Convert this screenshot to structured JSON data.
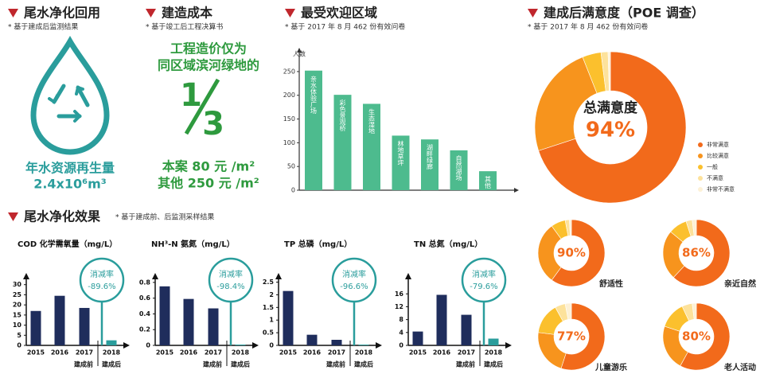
{
  "sections": [
    {
      "title": "尾水净化回用",
      "note": "* 基于建成后监测结果"
    },
    {
      "title": "建造成本",
      "note": "* 基于竣工后工程决算书"
    },
    {
      "title": "最受欢迎区域",
      "note": "* 基于 2017 年 8 月 462 份有效问卷"
    },
    {
      "title": "建成后满意度（POE 调查）",
      "note": "* 基于 2017 年 8 月 462 份有效问卷"
    },
    {
      "title": "尾水净化效果",
      "note": "* 基于建成前、后监测采样结果"
    }
  ],
  "water": {
    "label": "年水资源再生量",
    "amount": "2.4x10⁶m³"
  },
  "cost": {
    "lines": [
      "工程造价仅为",
      "同区域滨河绿地的"
    ],
    "numerator": "1",
    "denominator": "3",
    "rows": [
      "本案 80 元 /m²",
      "其他 250 元 /m²"
    ]
  },
  "chart_data": [
    {
      "type": "bar",
      "y_label": "人数",
      "categories": [
        "亲水体验广场",
        "彩色景观桥",
        "生态湿地",
        "林地草坪",
        "湖畔绿廊",
        "自然湖场",
        "其他"
      ],
      "values": [
        252,
        201,
        182,
        115,
        107,
        84,
        40
      ],
      "color": "#4dbb8e",
      "ylim": [
        0,
        270
      ],
      "yticks": [
        0,
        50,
        100,
        150,
        200,
        250
      ]
    },
    {
      "type": "pie",
      "center_title": "总满意度",
      "center_label": "94%",
      "legend": "right",
      "categories": [
        "非常满意",
        "比较满意",
        "一般",
        "不满意",
        "非常不满意"
      ],
      "values": [
        70,
        24,
        4,
        1.5,
        0.5
      ],
      "colors": [
        "#f26a1b",
        "#f7941d",
        "#fbc02d",
        "#fde29b",
        "#fdf1d6"
      ]
    },
    {
      "type": "pie",
      "label": "舒适性",
      "center_label": "90%",
      "values": [
        60,
        30,
        7,
        2,
        1
      ],
      "colors": [
        "#f26a1b",
        "#f7941d",
        "#fbc02d",
        "#fde29b",
        "#fdf1d6"
      ]
    },
    {
      "type": "pie",
      "label": "亲近自然",
      "center_label": "86%",
      "values": [
        62,
        24,
        9,
        3,
        2
      ],
      "colors": [
        "#f26a1b",
        "#f7941d",
        "#fbc02d",
        "#fde29b",
        "#fdf1d6"
      ]
    },
    {
      "type": "pie",
      "label": "儿童游乐",
      "center_label": "77%",
      "values": [
        55,
        22,
        15,
        5,
        3
      ],
      "colors": [
        "#f26a1b",
        "#f7941d",
        "#fbc02d",
        "#fde29b",
        "#fdf1d6"
      ]
    },
    {
      "type": "pie",
      "label": "老人活动",
      "center_label": "80%",
      "values": [
        58,
        22,
        13,
        5,
        2
      ],
      "colors": [
        "#f26a1b",
        "#f7941d",
        "#fbc02d",
        "#fde29b",
        "#fdf1d6"
      ]
    },
    {
      "type": "bar",
      "title": "COD 化学需氧量（mg/L）",
      "categories": [
        "2015",
        "2016",
        "2017",
        "2018"
      ],
      "values": [
        17,
        24.5,
        18.5,
        2.5
      ],
      "colors": [
        "#1f2d5c",
        "#1f2d5c",
        "#1f2d5c",
        "#2a9d9c"
      ],
      "ylim": [
        0,
        35
      ],
      "yticks": [
        0,
        5,
        10,
        15,
        20,
        25,
        30
      ],
      "annotation": {
        "label": "消减率",
        "text": "-89.6%"
      },
      "periods": [
        "建成前",
        "建成后"
      ]
    },
    {
      "type": "bar",
      "title": "NH³-N 氨氮（mg/L）",
      "categories": [
        "2015",
        "2016",
        "2017",
        "2018"
      ],
      "values": [
        0.75,
        0.59,
        0.47,
        0.01
      ],
      "colors": [
        "#1f2d5c",
        "#1f2d5c",
        "#1f2d5c",
        "#2a9d9c"
      ],
      "ylim": [
        0,
        0.9
      ],
      "yticks": [
        0,
        0.2,
        0.4,
        0.6,
        0.8
      ],
      "annotation": {
        "label": "消减率",
        "text": "-98.4%"
      },
      "periods": [
        "建成前",
        "建成后"
      ]
    },
    {
      "type": "bar",
      "title": "TP 总磷（mg/L）",
      "categories": [
        "2015",
        "2016",
        "2017",
        "2018"
      ],
      "values": [
        2.15,
        0.42,
        0.22,
        0.03
      ],
      "colors": [
        "#1f2d5c",
        "#1f2d5c",
        "#1f2d5c",
        "#2a9d9c"
      ],
      "ylim": [
        0,
        2.8
      ],
      "yticks": [
        0,
        0.5,
        1,
        1.5,
        2,
        2.5
      ],
      "annotation": {
        "label": "消减率",
        "text": "-96.6%"
      },
      "periods": [
        "建成前",
        "建成后"
      ]
    },
    {
      "type": "bar",
      "title": "TN 总氮（mg/L）",
      "categories": [
        "2015",
        "2016",
        "2017",
        "2018"
      ],
      "values": [
        4.3,
        15.7,
        9.5,
        2.1
      ],
      "colors": [
        "#1f2d5c",
        "#1f2d5c",
        "#1f2d5c",
        "#2a9d9c"
      ],
      "ylim": [
        0,
        22
      ],
      "yticks": [
        0,
        4,
        8,
        12,
        16
      ],
      "annotation": {
        "label": "消减率",
        "text": "-79.6%"
      },
      "periods": [
        "建成前",
        "建成后"
      ]
    }
  ]
}
